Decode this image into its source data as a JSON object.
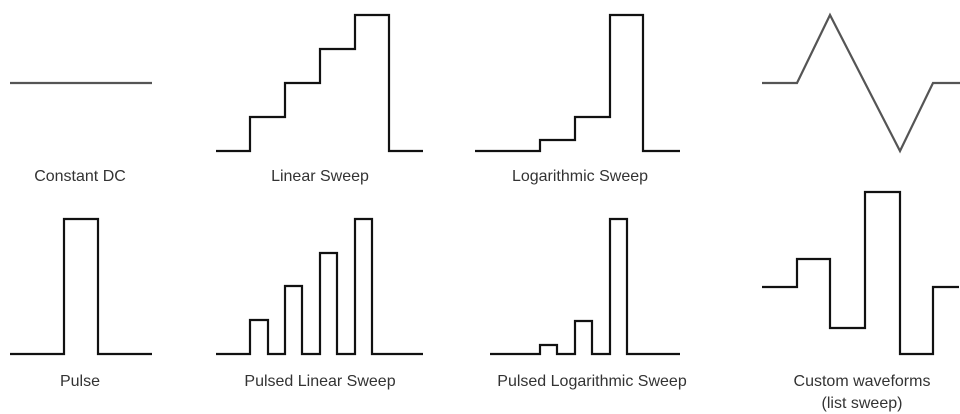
{
  "waveforms": [
    {
      "label": "Constant DC"
    },
    {
      "label": "Linear Sweep"
    },
    {
      "label": "Logarithmic Sweep"
    },
    {
      "label": "Pulse"
    },
    {
      "label": "Pulsed Linear Sweep"
    },
    {
      "label": "Pulsed Logarithmic Sweep"
    },
    {
      "label": "Custom waveforms",
      "sublabel": "(list sweep)"
    }
  ]
}
